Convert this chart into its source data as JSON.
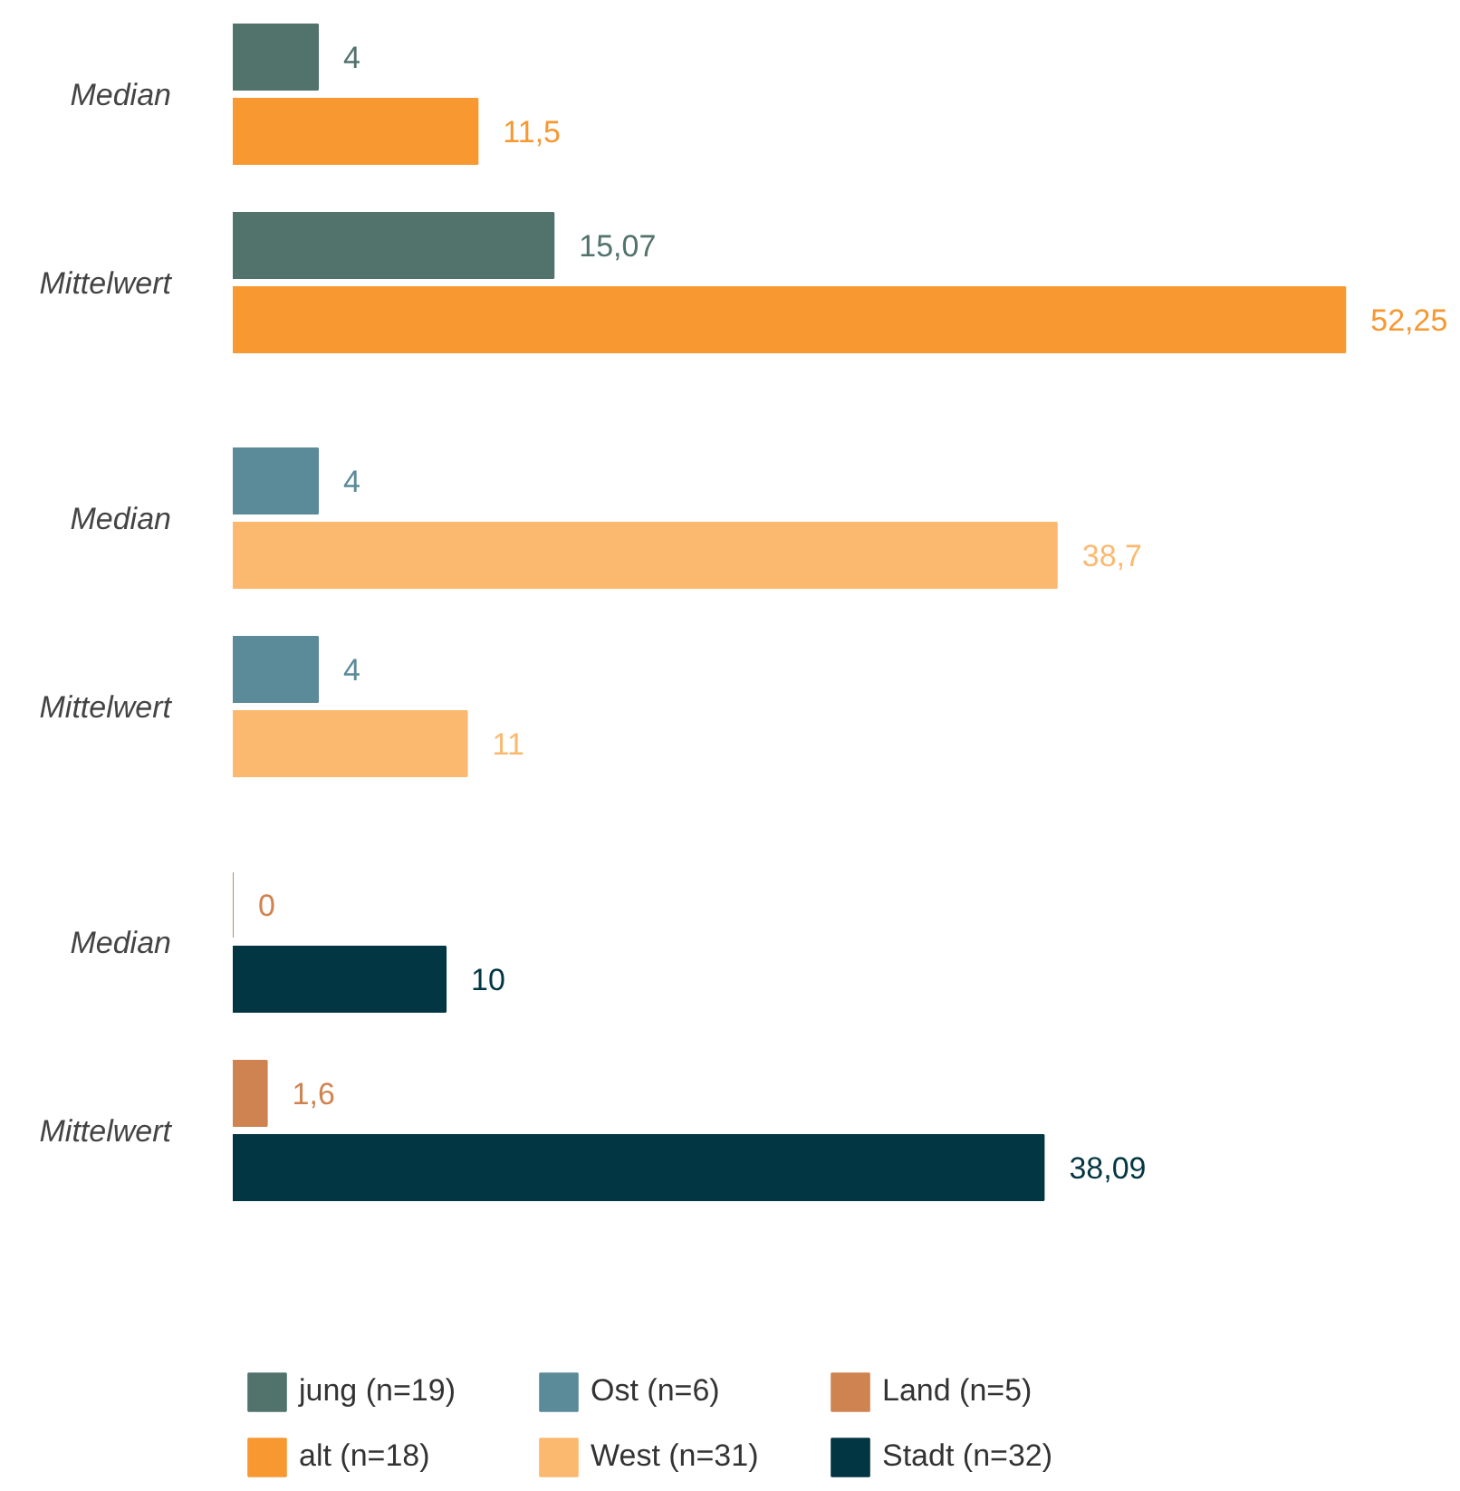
{
  "chart_data": {
    "type": "bar",
    "orientation": "horizontal",
    "categories": [
      "Median",
      "Mittelwert",
      "Median",
      "Mittelwert",
      "Median",
      "Mittelwert"
    ],
    "series": [
      {
        "name": "jung (n=19)",
        "color": "#52726c",
        "values": [
          4,
          15.07,
          null,
          null,
          null,
          null
        ],
        "value_labels": [
          "4",
          "15,07",
          null,
          null,
          null,
          null
        ]
      },
      {
        "name": "alt (n=18)",
        "color": "#f79831",
        "values": [
          11.5,
          52.25,
          null,
          null,
          null,
          null
        ],
        "value_labels": [
          "11,5",
          "52,25",
          null,
          null,
          null,
          null
        ]
      },
      {
        "name": "Ost (n=6)",
        "color": "#5b8a98",
        "values": [
          null,
          null,
          4,
          4,
          null,
          null
        ],
        "value_labels": [
          null,
          null,
          "4",
          "4",
          null,
          null
        ]
      },
      {
        "name": "West (n=31)",
        "color": "#fbb970",
        "values": [
          null,
          null,
          38.7,
          11,
          null,
          null
        ],
        "value_labels": [
          null,
          null,
          "38,7",
          "11",
          null,
          null
        ]
      },
      {
        "name": "Land (n=5)",
        "color": "#cf8350",
        "values": [
          null,
          null,
          null,
          null,
          0,
          1.6
        ],
        "value_labels": [
          null,
          null,
          null,
          null,
          "0",
          "1,6"
        ]
      },
      {
        "name": "Stadt (n=32)",
        "color": "#023642",
        "values": [
          null,
          null,
          null,
          null,
          10,
          38.09
        ],
        "value_labels": [
          null,
          null,
          null,
          null,
          "10",
          "38,09"
        ]
      }
    ],
    "legend": "bottom"
  }
}
